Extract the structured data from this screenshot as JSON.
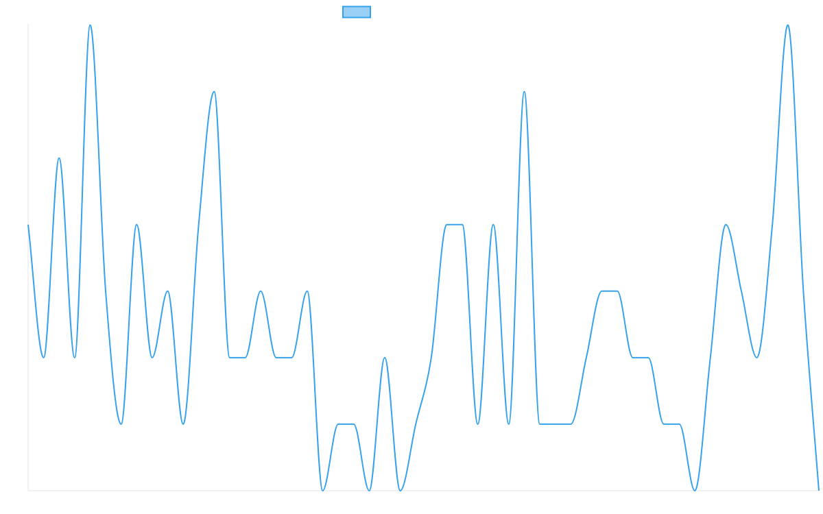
{
  "chart_data": {
    "type": "line",
    "title": "",
    "xlabel": "",
    "ylabel": "",
    "x": [
      0,
      1,
      2,
      3,
      4,
      5,
      6,
      7,
      8,
      9,
      10,
      11,
      12,
      13,
      14,
      15,
      16,
      17,
      18,
      19,
      20,
      21,
      22,
      23,
      24,
      25,
      26,
      27,
      28,
      29,
      30,
      31,
      32,
      33,
      34,
      35,
      36,
      37,
      38,
      39,
      40,
      41,
      42,
      43,
      44,
      45,
      46,
      47,
      48,
      49,
      50,
      51
    ],
    "ylim": [
      0,
      7
    ],
    "grid": false,
    "legend": {
      "position": "top",
      "entries": [
        {
          "label": "",
          "color": "#36a2eb"
        }
      ]
    },
    "series": [
      {
        "values": [
          4,
          2,
          5,
          2,
          7,
          3,
          1,
          4,
          2,
          3,
          1,
          4,
          6,
          2,
          2,
          3,
          2,
          2,
          3,
          0,
          1,
          1,
          0,
          2,
          0,
          1,
          2,
          4,
          4,
          1,
          4,
          1,
          6,
          1,
          1,
          1,
          2,
          3,
          3,
          2,
          2,
          1,
          1,
          0,
          2,
          4,
          3,
          2,
          4,
          7,
          3,
          0
        ],
        "color": "#36a2eb",
        "fill": "#9ad0f5"
      }
    ]
  }
}
